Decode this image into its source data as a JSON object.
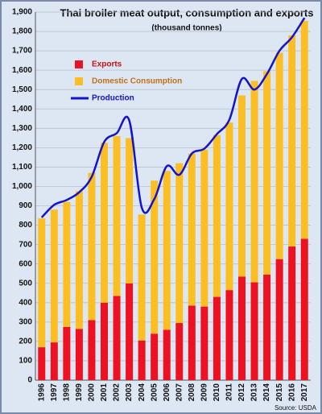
{
  "chart_data": {
    "type": "stacked-bar-line",
    "title": "Thai broiler meat output, consumption and exports",
    "subtitle": "(thousand tonnes)",
    "source": "Source: USDA",
    "categories": [
      "1996",
      "1997",
      "1998",
      "1999",
      "2000",
      "2001",
      "2002",
      "2003",
      "2004",
      "2005",
      "2006",
      "2007",
      "2008",
      "2009",
      "2010",
      "2011",
      "2012",
      "2013",
      "2014",
      "2015",
      "2016",
      "2017"
    ],
    "series": [
      {
        "name": "Exports",
        "color": "#ee1122",
        "kind": "bar",
        "values": [
          170,
          195,
          275,
          265,
          310,
          400,
          435,
          500,
          205,
          240,
          260,
          295,
          385,
          380,
          430,
          465,
          535,
          505,
          545,
          625,
          690,
          730
        ]
      },
      {
        "name": "Domestic Consumption",
        "color": "#fbbf24",
        "kind": "bar",
        "values": [
          665,
          685,
          645,
          710,
          760,
          825,
          825,
          750,
          650,
          790,
          820,
          825,
          785,
          810,
          835,
          865,
          935,
          1040,
          1050,
          1065,
          1090,
          1125
        ]
      },
      {
        "name": "Production",
        "color": "#1414cc",
        "kind": "line",
        "values": [
          840,
          905,
          930,
          970,
          1050,
          1230,
          1275,
          1340,
          890,
          935,
          1105,
          1060,
          1170,
          1195,
          1270,
          1345,
          1555,
          1500,
          1580,
          1700,
          1770,
          1870
        ]
      }
    ],
    "ylim": [
      0,
      1900
    ],
    "yticks": [
      0,
      100,
      200,
      300,
      400,
      500,
      600,
      700,
      800,
      900,
      {
        "value": 1000,
        "label": "1,000"
      },
      {
        "value": 1100,
        "label": "1,100"
      },
      {
        "value": 1200,
        "label": "1,200"
      },
      {
        "value": 1300,
        "label": "1,300"
      },
      {
        "value": 1400,
        "label": "1,400"
      },
      {
        "value": 1500,
        "label": "1,500"
      },
      {
        "value": 1600,
        "label": "1,600"
      },
      {
        "value": 1700,
        "label": "1,700"
      },
      {
        "value": 1800,
        "label": "1,800"
      },
      {
        "value": 1900,
        "label": "1,900"
      }
    ],
    "grid": true
  }
}
